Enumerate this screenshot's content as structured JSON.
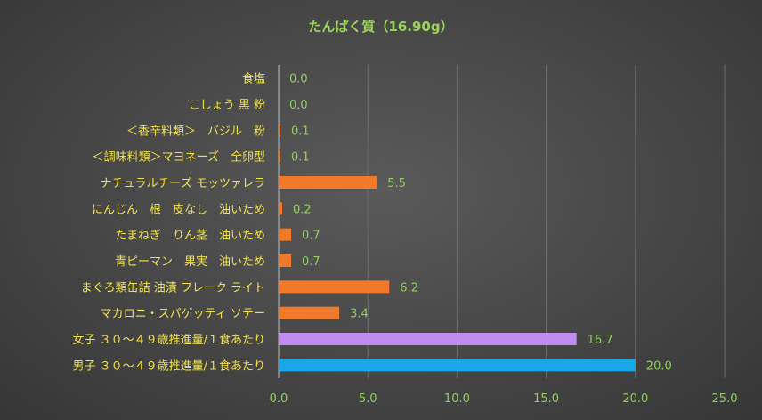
{
  "chart_data": {
    "type": "bar",
    "orientation": "horizontal",
    "title": "たんぱく質（16.90g）",
    "categories": [
      "食塩",
      "こしょう 黒 粉",
      "＜香辛料類＞　バジル　粉",
      "＜調味料類＞マヨネーズ　全卵型",
      "ナチュラルチーズ モッツァレラ",
      "にんじん　根　皮なし　油いため",
      "たまねぎ　りん茎　油いため",
      "青ピーマン　果実　油いため",
      "まぐろ類缶詰 油漬 フレーク ライト",
      "マカロニ・スパゲッティ ソテー",
      "女子 ３０～４９歳推進量/１食あたり",
      "男子 ３０～４９歳推進量/１食あたり"
    ],
    "values": [
      0.0,
      0.0,
      0.1,
      0.1,
      5.5,
      0.2,
      0.7,
      0.7,
      6.2,
      3.4,
      16.7,
      20.0
    ],
    "value_labels": [
      "0.0",
      "0.0",
      "0.1",
      "0.1",
      "5.5",
      "0.2",
      "0.7",
      "0.7",
      "6.2",
      "3.4",
      "16.7",
      "20.0"
    ],
    "bar_colors": [
      "#f07a2a",
      "#f07a2a",
      "#f07a2a",
      "#f07a2a",
      "#f07a2a",
      "#f07a2a",
      "#f07a2a",
      "#f07a2a",
      "#f07a2a",
      "#f07a2a",
      "#c08cf0",
      "#1aa7e8"
    ],
    "xlim": [
      0,
      25
    ],
    "xticks": [
      "0.0",
      "5.0",
      "10.0",
      "15.0",
      "20.0",
      "25.0"
    ],
    "grid": true,
    "xlabel": "",
    "ylabel": ""
  }
}
